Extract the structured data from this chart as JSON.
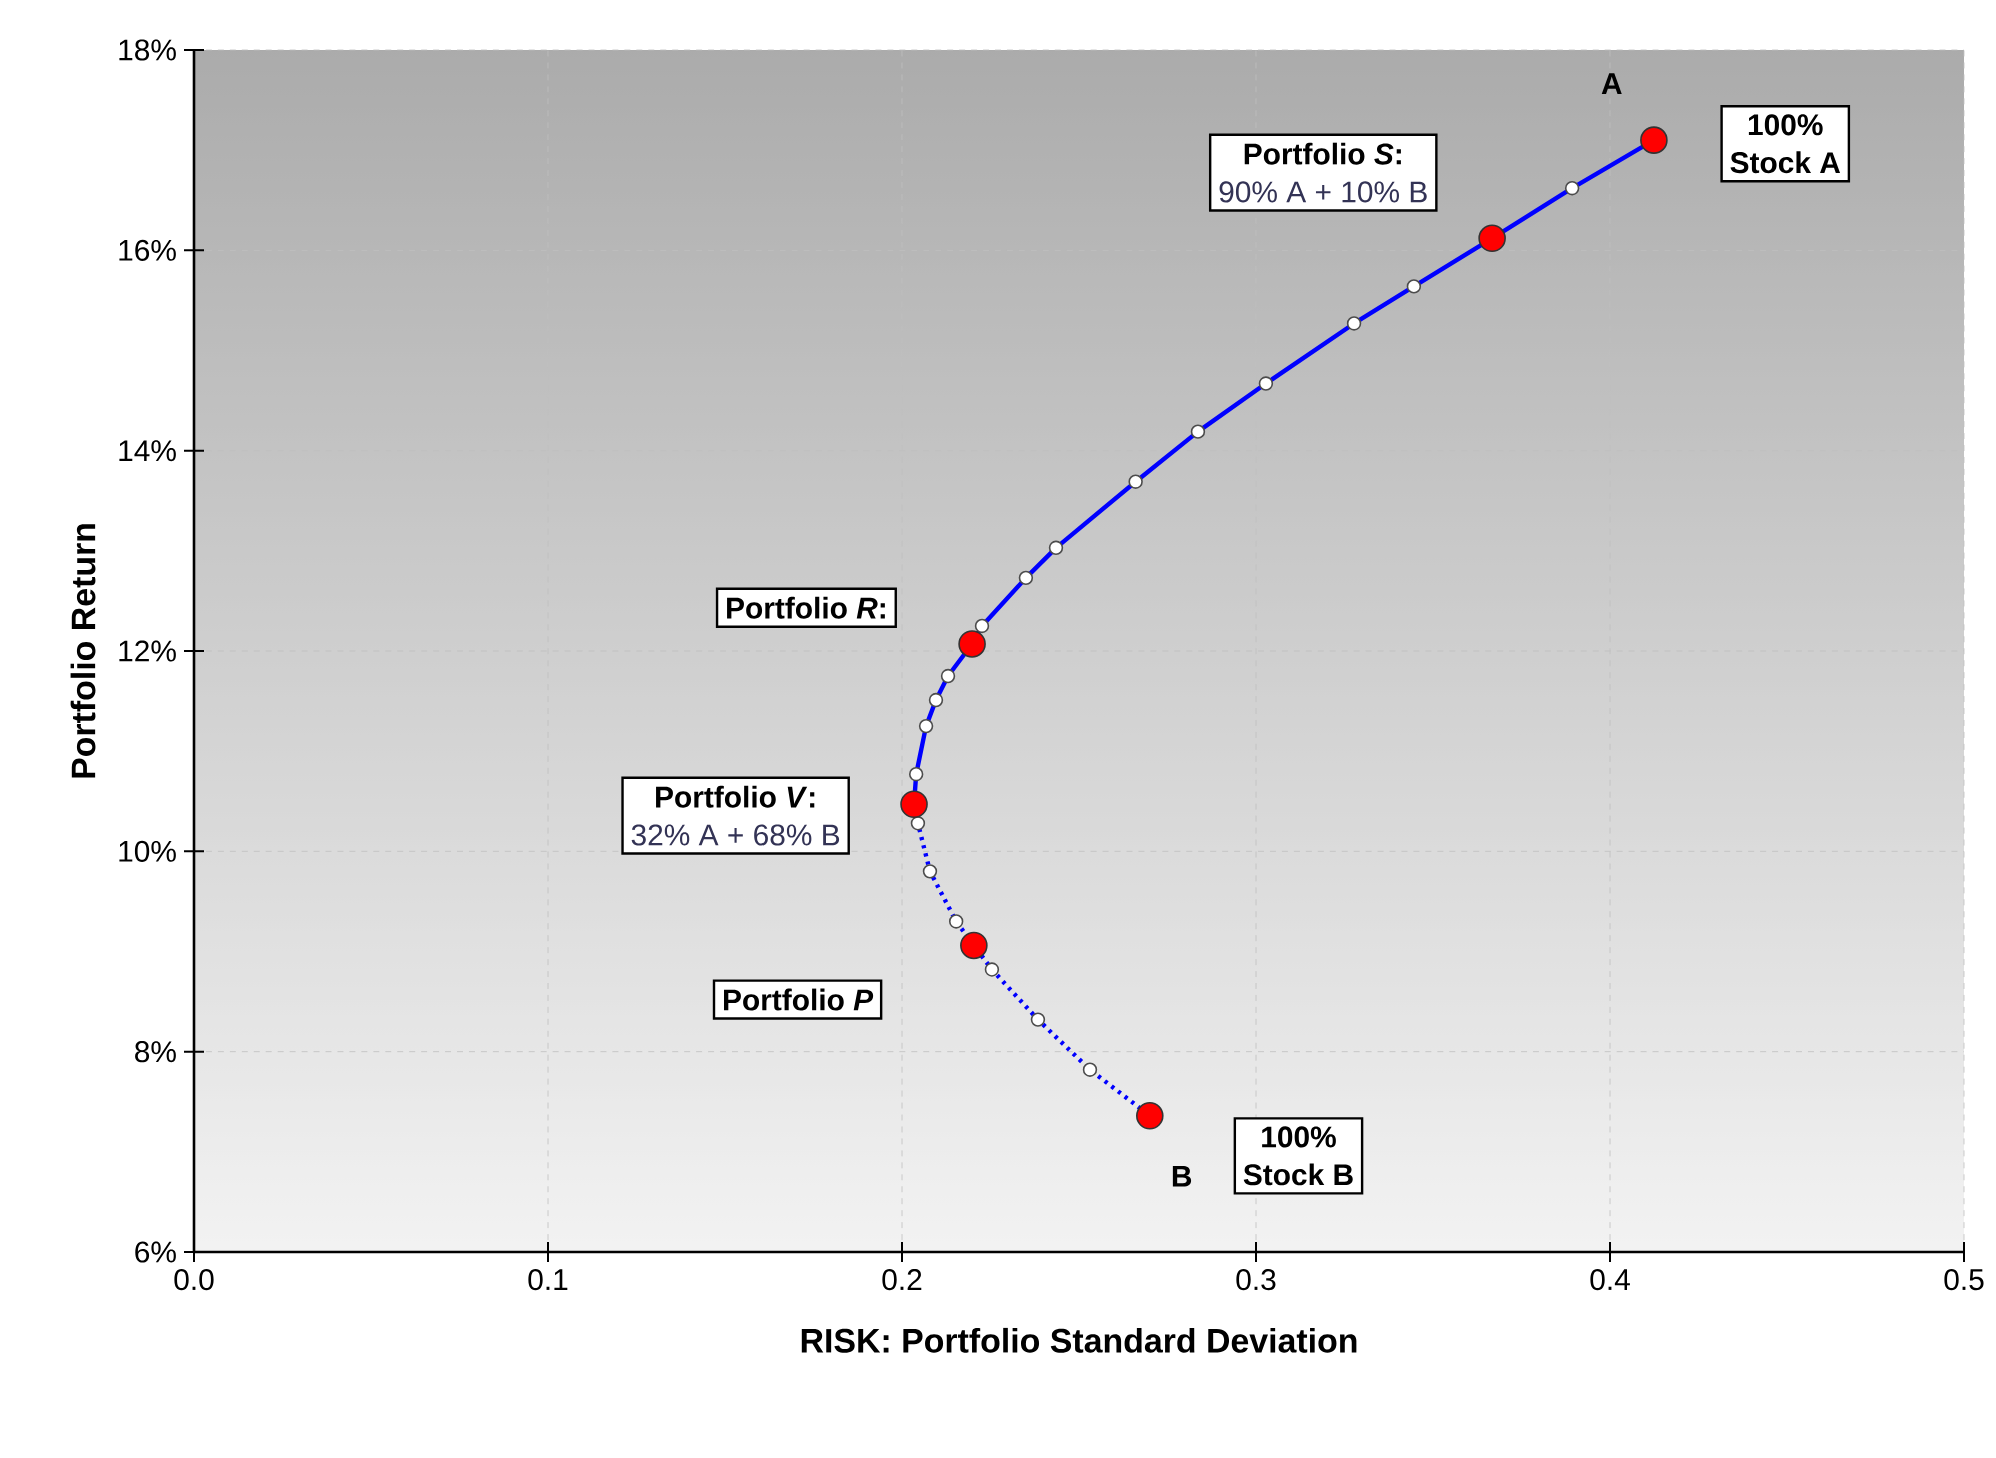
{
  "chart_data": {
    "type": "line",
    "xlabel": "RISK:  Portfolio Standard Deviation",
    "ylabel": "Portfolio Return",
    "xlim": [
      0,
      0.5
    ],
    "xticks": [
      {
        "value": 0,
        "label": "0.0"
      },
      0.1,
      0.2,
      0.3,
      0.4,
      0.5
    ],
    "ylim": [
      6,
      18
    ],
    "yticks": [
      {
        "value": 6,
        "label": "6%"
      },
      {
        "value": 8,
        "label": "8%"
      },
      {
        "value": 10,
        "label": "10%"
      },
      {
        "value": 12,
        "label": "12%"
      },
      {
        "value": 14,
        "label": "14%"
      },
      {
        "value": 16,
        "label": "16%"
      },
      {
        "value": 18,
        "label": "18%"
      }
    ],
    "grid": true,
    "series": [
      {
        "color": "#0000ff",
        "line_style": "solid",
        "marker": "circle",
        "x": [
          0.2034,
          0.204,
          0.2068,
          0.2096,
          0.213,
          0.2198,
          0.2226,
          0.235,
          0.2435,
          0.266,
          0.2836,
          0.3028,
          0.3277,
          0.3446,
          0.3667,
          0.3893,
          0.4124
        ],
        "values": [
          10.47,
          10.77,
          11.25,
          11.51,
          11.75,
          12.07,
          12.25,
          12.73,
          13.03,
          13.69,
          14.19,
          14.67,
          15.27,
          15.64,
          16.12,
          16.62,
          17.1
        ]
      },
      {
        "color": "#0000ff",
        "line_style": "dotted",
        "marker": "circle",
        "x": [
          0.2034,
          0.2045,
          0.2079,
          0.2153,
          0.2203,
          0.2254,
          0.2384,
          0.2531,
          0.27
        ],
        "values": [
          10.47,
          10.28,
          9.8,
          9.3,
          9.06,
          8.82,
          8.32,
          7.82,
          7.36
        ]
      },
      {
        "type": "scatter",
        "color": "#ff0000",
        "marker": "circle",
        "x": [
          0.4124,
          0.3667,
          0.2198,
          0.2034,
          0.2203,
          0.27
        ],
        "values": [
          17.1,
          16.12,
          12.07,
          10.47,
          9.06,
          7.36
        ]
      }
    ],
    "annotations": [
      "A",
      "100%",
      "Stock A",
      "Portfolio *S*:",
      "90% A + 10% B",
      "Portfolio *R*:",
      "Portfolio *V*:",
      "32% A + 68% B",
      "Portfolio *P*",
      "B",
      "100%",
      "Stock B"
    ]
  }
}
